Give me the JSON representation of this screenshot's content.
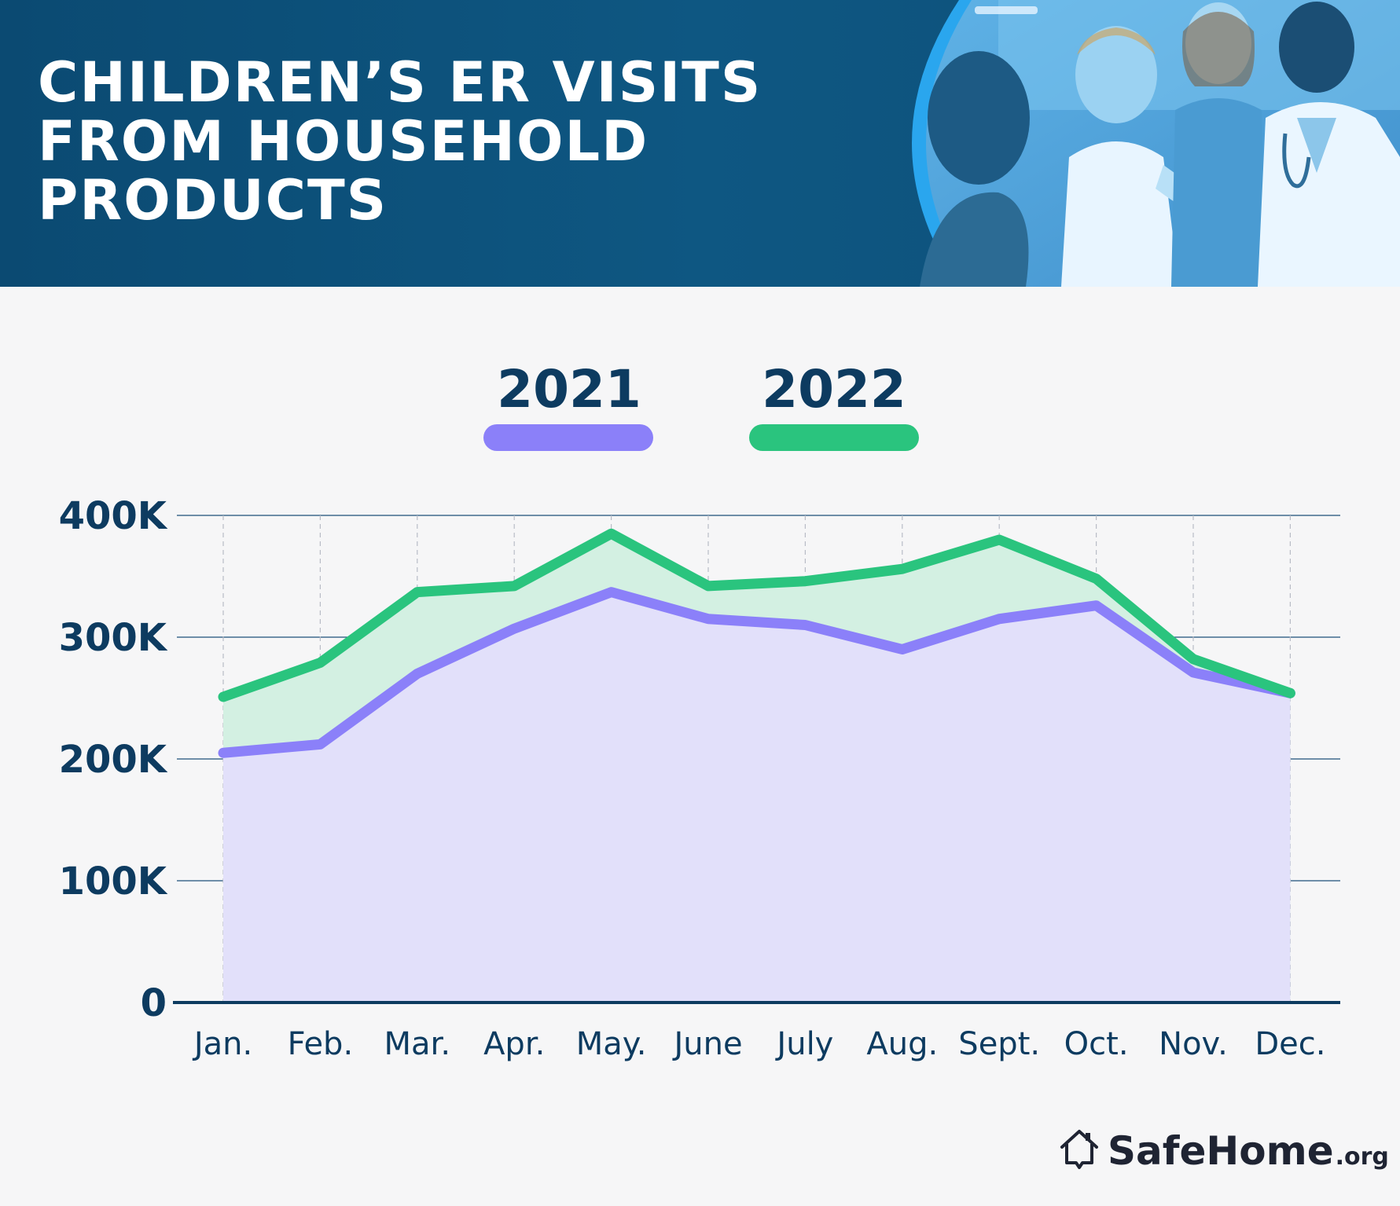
{
  "banner": {
    "title_lines": [
      "CHILDREN’S ER VISITS",
      "FROM HOUSEHOLD",
      "PRODUCTS"
    ]
  },
  "brand": {
    "name": "SafeHome",
    "suffix": ".org",
    "icon": "house-icon"
  },
  "colors": {
    "banner": "#0e5782",
    "series_2021": "#8b80f9",
    "series_2022": "#2ac47e",
    "fill_2021": "#e2e0fa",
    "fill_2022": "#d3f0e2",
    "text": "#0d3b60"
  },
  "chart_data": {
    "type": "area",
    "title": "CHILDREN’S ER VISITS FROM HOUSEHOLD PRODUCTS",
    "categories": [
      "Jan.",
      "Feb.",
      "Mar.",
      "Apr.",
      "May.",
      "June",
      "July",
      "Aug.",
      "Sept.",
      "Oct.",
      "Nov.",
      "Dec."
    ],
    "series": [
      {
        "name": "2021",
        "color": "#8b80f9",
        "values": [
          205000,
          212000,
          270000,
          307000,
          337000,
          315000,
          310000,
          290000,
          315000,
          326000,
          271000,
          254000
        ]
      },
      {
        "name": "2022",
        "color": "#2ac47e",
        "values": [
          251000,
          279000,
          337000,
          342000,
          385000,
          342000,
          346000,
          356000,
          380000,
          348000,
          282000,
          254000
        ]
      }
    ],
    "yticks": [
      "0",
      "100K",
      "200K",
      "300K",
      "400K"
    ],
    "ylim": [
      0,
      400000
    ],
    "grid": "horizontal solid lines, vertical dashed lines",
    "legend_position": "top-center",
    "xlabel": "",
    "ylabel": ""
  }
}
